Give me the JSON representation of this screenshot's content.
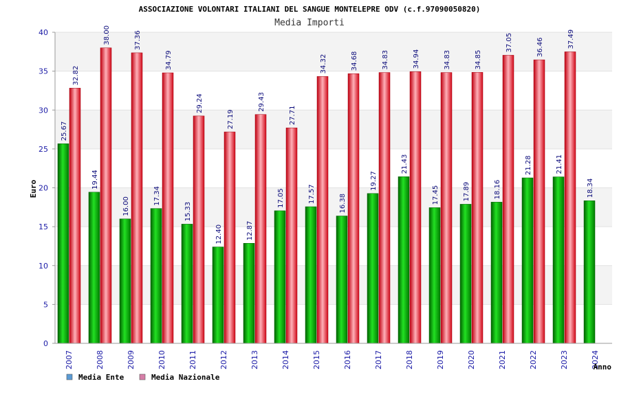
{
  "chart_data": {
    "type": "bar",
    "title": "ASSOCIAZIONE VOLONTARI ITALIANI DEL SANGUE MONTELEPRE ODV (c.f.97090050820)",
    "subtitle": "Media Importi",
    "xlabel": "Anno",
    "ylabel": "Euro",
    "ylim": [
      0,
      40
    ],
    "yticks": [
      0,
      5,
      10,
      15,
      20,
      25,
      30,
      35,
      40
    ],
    "grid": true,
    "legend_position": "bottom-left",
    "categories": [
      "2007",
      "2008",
      "2009",
      "2010",
      "2011",
      "2012",
      "2013",
      "2014",
      "2015",
      "2016",
      "2017",
      "2018",
      "2019",
      "2020",
      "2021",
      "2022",
      "2023",
      "2024"
    ],
    "series": [
      {
        "name": "Media Ente",
        "color": "#00a000",
        "legend_color": "#5b9bd5",
        "values": [
          25.67,
          19.44,
          16.0,
          17.34,
          15.33,
          12.4,
          12.87,
          17.05,
          17.57,
          16.38,
          19.27,
          21.43,
          17.45,
          17.89,
          18.16,
          21.28,
          21.41,
          18.34
        ],
        "labels": [
          "25.67",
          "19.44",
          "16.00",
          "17.34",
          "15.33",
          "12.40",
          "12.87",
          "17.05",
          "17.57",
          "16.38",
          "19.27",
          "21.43",
          "17.45",
          "17.89",
          "18.16",
          "21.28",
          "21.41",
          "18.34"
        ]
      },
      {
        "name": "Media Nazionale",
        "color": "#e01020",
        "legend_color": "#d67fa8",
        "values": [
          32.82,
          38.0,
          37.36,
          34.79,
          29.24,
          27.19,
          29.43,
          27.71,
          34.32,
          34.68,
          34.83,
          34.94,
          34.83,
          34.85,
          37.05,
          36.46,
          37.49,
          null
        ],
        "labels": [
          "32.82",
          "38.00",
          "37.36",
          "34.79",
          "29.24",
          "27.19",
          "29.43",
          "27.71",
          "34.32",
          "34.68",
          "34.83",
          "34.94",
          "34.83",
          "34.85",
          "37.05",
          "36.46",
          "37.49",
          ""
        ]
      }
    ]
  }
}
